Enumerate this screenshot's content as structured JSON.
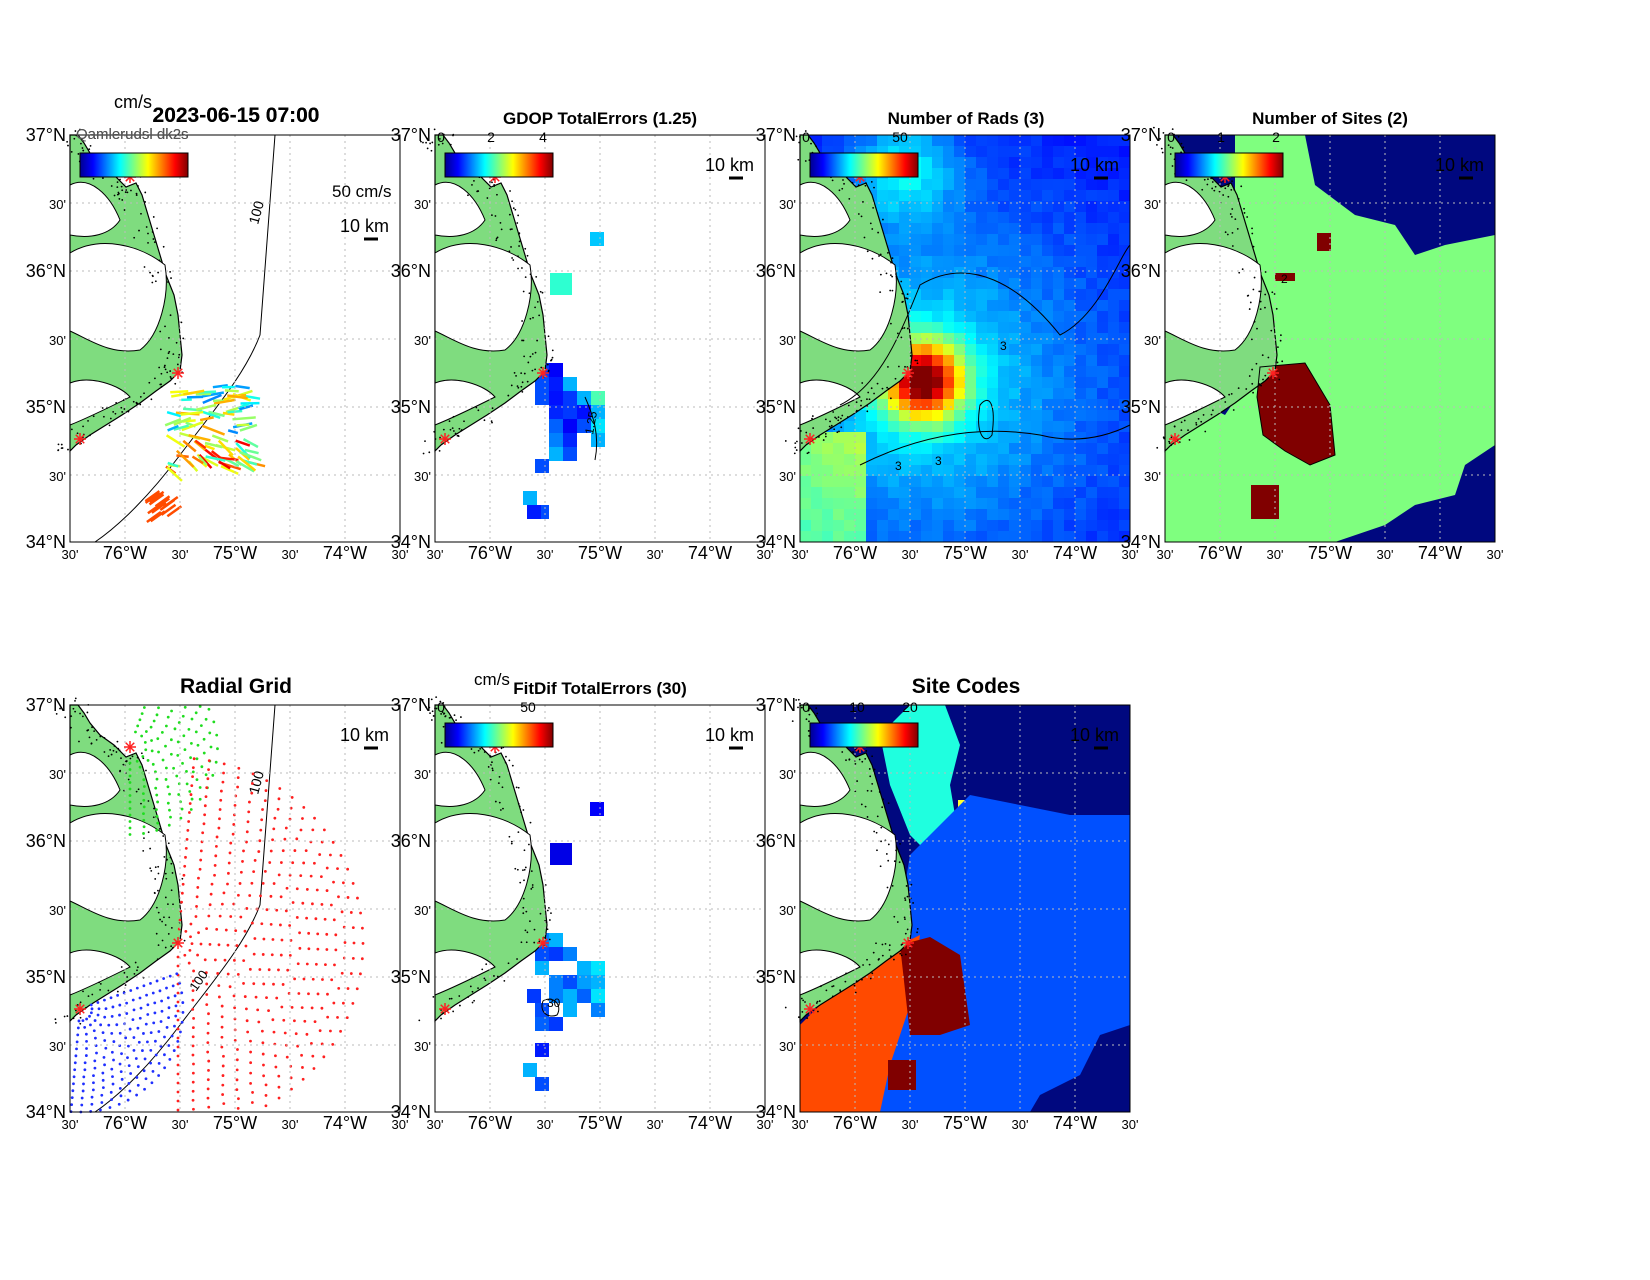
{
  "figure": {
    "timestamp": "2023-06-15 07:00",
    "stack_label": "Qamlerudsl dk2s",
    "lat_labels": [
      "34°N",
      "30'",
      "35°N",
      "30'",
      "36°N",
      "30'",
      "37°N"
    ],
    "lon_labels": [
      "30'",
      "76°W",
      "30'",
      "75°W",
      "30'",
      "74°W",
      "30'"
    ],
    "scale_bar_label": "10 km",
    "contour_100": "100",
    "colors": {
      "land": "#7fdc7f",
      "background": "#ffffff",
      "grid": "#bbbbbb",
      "site_marker": "#ff2020",
      "navy": "#00087f",
      "blue_fill": "#0050ff",
      "dark_red": "#800000",
      "light_green": "#7fff7f",
      "cyan": "#1fffdf",
      "orange": "#ff4a00"
    }
  },
  "panels": {
    "p1": {
      "title": "2023-06-15 07:00",
      "units": "cm/s",
      "colorbar_ticks": [
        "Qamlerudsl dk2s"
      ],
      "vector_scale": "50 cm/s",
      "scale_bar": "10 km",
      "contour": "100"
    },
    "p2": {
      "title": "GDOP TotalErrors (1.25)",
      "colorbar_ticks": [
        "0",
        "2",
        "4"
      ],
      "scale_bar": "10 km",
      "contour": "1.25"
    },
    "p3": {
      "title": "Number of Rads (3)",
      "colorbar_ticks": [
        "0",
        "50"
      ],
      "scale_bar": "10 km",
      "contour": "3"
    },
    "p4": {
      "title": "Number of Sites (2)",
      "colorbar_ticks": [
        "0",
        "1",
        "2"
      ],
      "scale_bar": "10 km",
      "contour": "2"
    },
    "p5": {
      "title": "Radial Grid",
      "scale_bar": "10 km",
      "contour": "100"
    },
    "p6": {
      "title": "FitDif TotalErrors (30)",
      "units": "cm/s",
      "colorbar_ticks": [
        "0",
        "50"
      ],
      "scale_bar": "10 km",
      "contour": "30"
    },
    "p7": {
      "title": "Site Codes",
      "colorbar_ticks": [
        "0",
        "10",
        "20"
      ],
      "scale_bar": "10 km"
    }
  }
}
